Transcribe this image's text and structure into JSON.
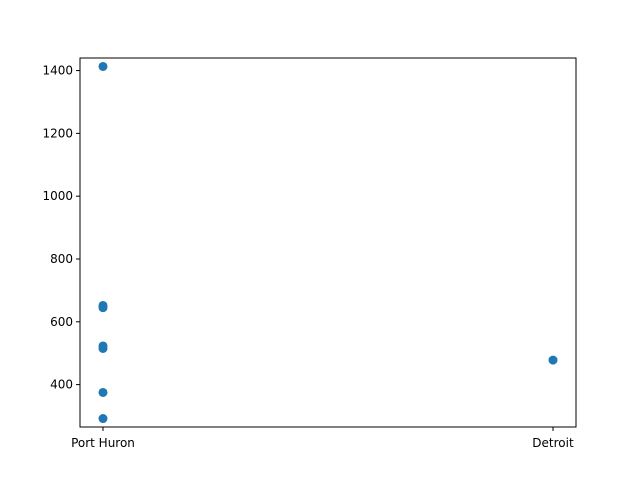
{
  "chart_data": {
    "type": "scatter",
    "title": "",
    "xlabel": "",
    "ylabel": "",
    "categories": [
      "Port Huron",
      "Detroit"
    ],
    "points": [
      {
        "x": "Port Huron",
        "y": 1413
      },
      {
        "x": "Port Huron",
        "y": 652
      },
      {
        "x": "Port Huron",
        "y": 645
      },
      {
        "x": "Port Huron",
        "y": 523
      },
      {
        "x": "Port Huron",
        "y": 515
      },
      {
        "x": "Port Huron",
        "y": 375
      },
      {
        "x": "Port Huron",
        "y": 292
      },
      {
        "x": "Detroit",
        "y": 478
      }
    ],
    "ylim": [
      265,
      1440
    ],
    "yticks": [
      400,
      600,
      800,
      1000,
      1200,
      1400
    ],
    "grid": false,
    "legend": "none",
    "colors": {
      "marker": "#1f77b4",
      "axis": "#000000"
    }
  }
}
